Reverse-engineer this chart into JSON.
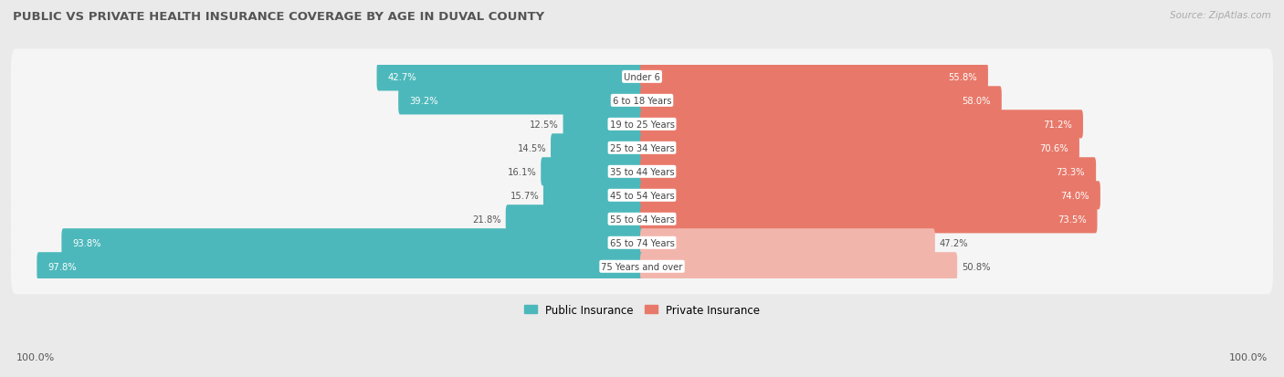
{
  "title": "PUBLIC VS PRIVATE HEALTH INSURANCE COVERAGE BY AGE IN DUVAL COUNTY",
  "source": "Source: ZipAtlas.com",
  "categories": [
    "Under 6",
    "6 to 18 Years",
    "19 to 25 Years",
    "25 to 34 Years",
    "35 to 44 Years",
    "45 to 54 Years",
    "55 to 64 Years",
    "65 to 74 Years",
    "75 Years and over"
  ],
  "public_values": [
    42.7,
    39.2,
    12.5,
    14.5,
    16.1,
    15.7,
    21.8,
    93.8,
    97.8
  ],
  "private_values": [
    55.8,
    58.0,
    71.2,
    70.6,
    73.3,
    74.0,
    73.5,
    47.2,
    50.8
  ],
  "public_color": "#4db8bb",
  "private_color_strong": "#e8796a",
  "private_color_light": "#f2b5ac",
  "bg_color": "#eaeaea",
  "row_bg_color": "#f5f5f5",
  "title_color": "#555555",
  "source_color": "#aaaaaa",
  "value_color_outside": "#555555",
  "value_color_inside": "#ffffff",
  "bar_height": 0.6,
  "legend_public": "Public Insurance",
  "legend_private": "Private Insurance",
  "axis_label": "100.0%",
  "scale": 100
}
